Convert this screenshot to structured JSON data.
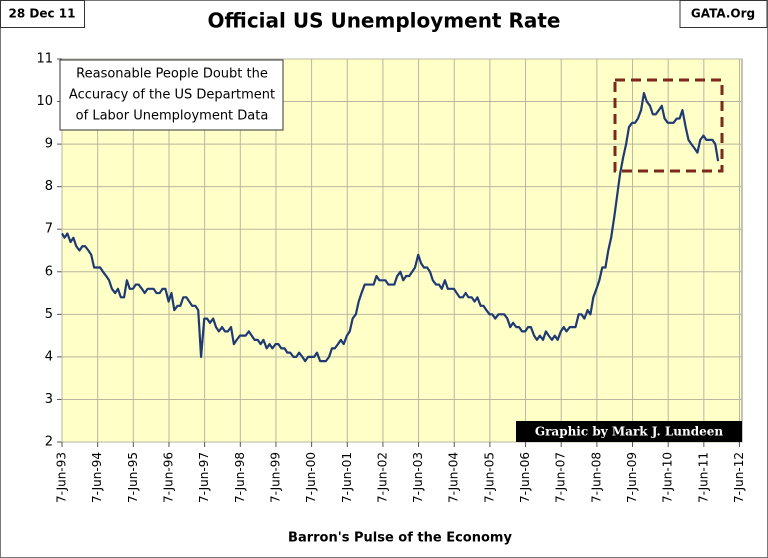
{
  "chart_data": {
    "type": "line",
    "title": "Official US Unemployment Rate",
    "date_label": "28 Dec 11",
    "source_label": "GATA.Org",
    "annotation": [
      "Reasonable People Doubt the",
      "Accuracy of the US Department",
      "of Labor Unemployment Data"
    ],
    "credit": "Graphic by Mark J. Lundeen",
    "x_label": "Barron's Pulse of the Economy",
    "series": [
      {
        "color": "#1f3a73",
        "x": [
          1993.43,
          1993.5,
          1993.58,
          1993.67,
          1993.75,
          1993.83,
          1993.92,
          1994.0,
          1994.08,
          1994.17,
          1994.25,
          1994.33,
          1994.42,
          1994.5,
          1994.58,
          1994.67,
          1994.75,
          1994.83,
          1994.92,
          1995.0,
          1995.08,
          1995.17,
          1995.25,
          1995.33,
          1995.42,
          1995.5,
          1995.58,
          1995.67,
          1995.75,
          1995.83,
          1995.92,
          1996.0,
          1996.08,
          1996.17,
          1996.25,
          1996.33,
          1996.42,
          1996.5,
          1996.58,
          1996.67,
          1996.75,
          1996.83,
          1996.92,
          1997.0,
          1997.08,
          1997.17,
          1997.25,
          1997.33,
          1997.42,
          1997.5,
          1997.58,
          1997.67,
          1997.75,
          1997.83,
          1997.92,
          1998.0,
          1998.08,
          1998.17,
          1998.25,
          1998.33,
          1998.42,
          1998.5,
          1998.58,
          1998.67,
          1998.75,
          1998.83,
          1998.92,
          1999.0,
          1999.08,
          1999.17,
          1999.25,
          1999.33,
          1999.42,
          1999.5,
          1999.58,
          1999.67,
          1999.75,
          1999.83,
          1999.92,
          2000.0,
          2000.08,
          2000.17,
          2000.25,
          2000.33,
          2000.42,
          2000.5,
          2000.58,
          2000.67,
          2000.75,
          2000.83,
          2000.92,
          2001.0,
          2001.08,
          2001.17,
          2001.25,
          2001.33,
          2001.42,
          2001.5,
          2001.58,
          2001.67,
          2001.75,
          2001.83,
          2001.92,
          2002.0,
          2002.08,
          2002.17,
          2002.25,
          2002.33,
          2002.42,
          2002.5,
          2002.58,
          2002.67,
          2002.75,
          2002.83,
          2002.92,
          2003.0,
          2003.08,
          2003.17,
          2003.25,
          2003.33,
          2003.42,
          2003.5,
          2003.58,
          2003.67,
          2003.75,
          2003.83,
          2003.92,
          2004.0,
          2004.08,
          2004.17,
          2004.25,
          2004.33,
          2004.42,
          2004.5,
          2004.58,
          2004.67,
          2004.75,
          2004.83,
          2004.92,
          2005.0,
          2005.08,
          2005.17,
          2005.25,
          2005.33,
          2005.42,
          2005.5,
          2005.58,
          2005.67,
          2005.75,
          2005.83,
          2005.92,
          2006.0,
          2006.08,
          2006.17,
          2006.25,
          2006.33,
          2006.42,
          2006.5,
          2006.58,
          2006.67,
          2006.75,
          2006.83,
          2006.92,
          2007.0,
          2007.08,
          2007.17,
          2007.25,
          2007.33,
          2007.42,
          2007.5,
          2007.58,
          2007.67,
          2007.75,
          2007.83,
          2007.92,
          2008.0,
          2008.08,
          2008.17,
          2008.25,
          2008.33,
          2008.42,
          2008.5,
          2008.58,
          2008.67,
          2008.75,
          2008.83,
          2008.92,
          2009.0,
          2009.08,
          2009.17,
          2009.25,
          2009.33,
          2009.42,
          2009.5,
          2009.58,
          2009.67,
          2009.75,
          2009.83,
          2009.92,
          2010.0,
          2010.08,
          2010.17,
          2010.25,
          2010.33,
          2010.42,
          2010.5,
          2010.58,
          2010.67,
          2010.75,
          2010.83,
          2010.92,
          2011.0,
          2011.08,
          2011.17,
          2011.25,
          2011.33,
          2011.42,
          2011.5,
          2011.58,
          2011.67,
          2011.75,
          2011.83
        ],
        "values": [
          6.9,
          6.8,
          6.9,
          6.7,
          6.8,
          6.6,
          6.5,
          6.6,
          6.6,
          6.5,
          6.4,
          6.1,
          6.1,
          6.1,
          6.0,
          5.9,
          5.8,
          5.6,
          5.5,
          5.6,
          5.4,
          5.4,
          5.8,
          5.6,
          5.6,
          5.7,
          5.7,
          5.6,
          5.5,
          5.6,
          5.6,
          5.6,
          5.5,
          5.5,
          5.6,
          5.6,
          5.3,
          5.5,
          5.1,
          5.2,
          5.2,
          5.4,
          5.4,
          5.3,
          5.2,
          5.2,
          5.1,
          4.0,
          4.9,
          4.9,
          4.8,
          4.9,
          4.7,
          4.6,
          4.7,
          4.6,
          4.6,
          4.7,
          4.3,
          4.4,
          4.5,
          4.5,
          4.5,
          4.6,
          4.5,
          4.4,
          4.4,
          4.3,
          4.4,
          4.2,
          4.3,
          4.2,
          4.3,
          4.3,
          4.2,
          4.2,
          4.1,
          4.1,
          4.0,
          4.0,
          4.1,
          4.0,
          3.9,
          4.0,
          4.0,
          4.0,
          4.1,
          3.9,
          3.9,
          3.9,
          4.0,
          4.2,
          4.2,
          4.3,
          4.4,
          4.3,
          4.5,
          4.6,
          4.9,
          5.0,
          5.3,
          5.5,
          5.7,
          5.7,
          5.7,
          5.7,
          5.9,
          5.8,
          5.8,
          5.8,
          5.7,
          5.7,
          5.7,
          5.9,
          6.0,
          5.8,
          5.9,
          5.9,
          6.0,
          6.1,
          6.4,
          6.2,
          6.1,
          6.1,
          6.0,
          5.8,
          5.7,
          5.7,
          5.6,
          5.8,
          5.6,
          5.6,
          5.6,
          5.5,
          5.4,
          5.4,
          5.5,
          5.4,
          5.4,
          5.3,
          5.4,
          5.2,
          5.2,
          5.1,
          5.0,
          5.0,
          4.9,
          5.0,
          5.0,
          5.0,
          4.9,
          4.7,
          4.8,
          4.7,
          4.7,
          4.6,
          4.6,
          4.7,
          4.7,
          4.5,
          4.4,
          4.5,
          4.4,
          4.6,
          4.5,
          4.4,
          4.5,
          4.4,
          4.6,
          4.7,
          4.6,
          4.7,
          4.7,
          4.7,
          5.0,
          5.0,
          4.9,
          5.1,
          5.0,
          5.4,
          5.6,
          5.8,
          6.1,
          6.1,
          6.5,
          6.8,
          7.3,
          7.8,
          8.3,
          8.7,
          9.0,
          9.4,
          9.5,
          9.5,
          9.6,
          9.8,
          10.2,
          10.0,
          9.9,
          9.7,
          9.7,
          9.8,
          9.9,
          9.6,
          9.5,
          9.5,
          9.5,
          9.6,
          9.6,
          9.8,
          9.4,
          9.1,
          9.0,
          8.9,
          8.8,
          9.1,
          9.2,
          9.1,
          9.1,
          9.1,
          9.0,
          8.6
        ]
      }
    ],
    "xlim": [
      1993.43,
      2012.5
    ],
    "xticks": [
      {
        "value": 1993.43,
        "label": "7-Jun-93"
      },
      {
        "value": 1994.43,
        "label": "7-Jun-94"
      },
      {
        "value": 1995.43,
        "label": "7-Jun-95"
      },
      {
        "value": 1996.43,
        "label": "7-Jun-96"
      },
      {
        "value": 1997.43,
        "label": "7-Jun-97"
      },
      {
        "value": 1998.43,
        "label": "7-Jun-98"
      },
      {
        "value": 1999.43,
        "label": "7-Jun-99"
      },
      {
        "value": 2000.43,
        "label": "7-Jun-00"
      },
      {
        "value": 2001.43,
        "label": "7-Jun-01"
      },
      {
        "value": 2002.43,
        "label": "7-Jun-02"
      },
      {
        "value": 2003.43,
        "label": "7-Jun-03"
      },
      {
        "value": 2004.43,
        "label": "7-Jun-04"
      },
      {
        "value": 2005.43,
        "label": "7-Jun-05"
      },
      {
        "value": 2006.43,
        "label": "7-Jun-06"
      },
      {
        "value": 2007.43,
        "label": "7-Jun-07"
      },
      {
        "value": 2008.43,
        "label": "7-Jun-08"
      },
      {
        "value": 2009.43,
        "label": "7-Jun-09"
      },
      {
        "value": 2010.43,
        "label": "7-Jun-10"
      },
      {
        "value": 2011.43,
        "label": "7-Jun-11"
      },
      {
        "value": 2012.43,
        "label": "7-Jun-12"
      }
    ],
    "ylim": [
      2,
      11
    ],
    "yticks": [
      2,
      3,
      4,
      5,
      6,
      7,
      8,
      9,
      10,
      11
    ],
    "grid": true
  }
}
